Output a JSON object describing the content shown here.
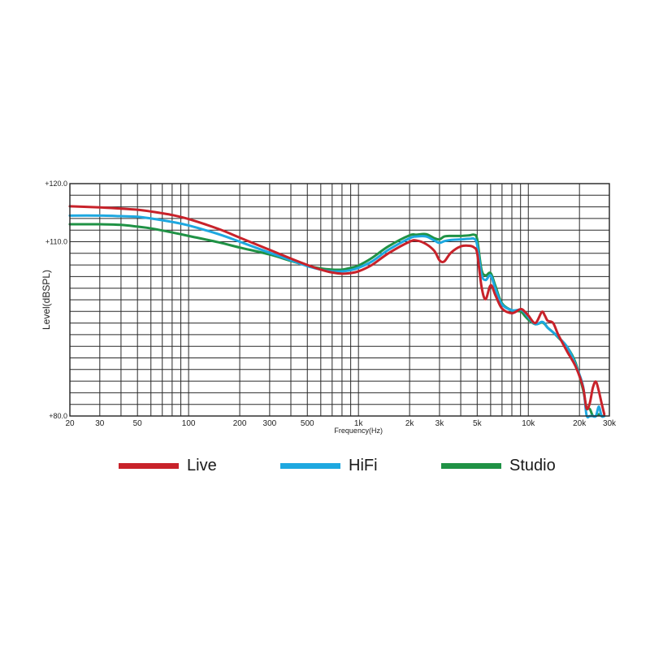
{
  "chart_data": {
    "type": "line",
    "xlabel": "Frequency(Hz)",
    "ylabel": "Level(dBSPL)",
    "x_scale": "log",
    "xlim": [
      20,
      30000
    ],
    "ylim": [
      80,
      120
    ],
    "grid": true,
    "x_ticks": [
      {
        "value": 20,
        "label": "20"
      },
      {
        "value": 30,
        "label": "30"
      },
      {
        "value": 50,
        "label": "50"
      },
      {
        "value": 100,
        "label": "100"
      },
      {
        "value": 200,
        "label": "200"
      },
      {
        "value": 300,
        "label": "300"
      },
      {
        "value": 500,
        "label": "500"
      },
      {
        "value": 1000,
        "label": "1k"
      },
      {
        "value": 2000,
        "label": "2k"
      },
      {
        "value": 3000,
        "label": "3k"
      },
      {
        "value": 5000,
        "label": "5k"
      },
      {
        "value": 10000,
        "label": "10k"
      },
      {
        "value": 20000,
        "label": "20k"
      },
      {
        "value": 30000,
        "label": "30k"
      }
    ],
    "y_ticks": [
      {
        "value": 120,
        "label": "+120.0"
      },
      {
        "value": 110,
        "label": "+110.0"
      },
      {
        "value": 80,
        "label": "+80.0"
      }
    ],
    "legend_position": "bottom",
    "series": [
      {
        "name": "Live",
        "color": "#c8222a",
        "x": [
          20,
          30,
          40,
          50,
          60,
          80,
          100,
          150,
          200,
          300,
          400,
          500,
          600,
          700,
          800,
          900,
          1000,
          1200,
          1500,
          2000,
          2200,
          2500,
          2800,
          3000,
          3200,
          3500,
          4000,
          4500,
          4800,
          5000,
          5300,
          5600,
          6000,
          6400,
          7000,
          8000,
          9000,
          9500,
          10000,
          11000,
          12000,
          12500,
          13000,
          14000,
          15000,
          17000,
          19000,
          21000,
          22000,
          23000,
          24000,
          25000,
          26000,
          27000,
          28000
        ],
        "y": [
          116.1,
          115.9,
          115.7,
          115.5,
          115.2,
          114.6,
          113.9,
          112.2,
          110.7,
          108.6,
          107.1,
          106.0,
          105.2,
          104.7,
          104.5,
          104.6,
          104.9,
          106.0,
          108.0,
          110.0,
          110.2,
          109.6,
          108.4,
          106.8,
          106.6,
          108.1,
          109.2,
          109.3,
          109.0,
          108.0,
          102.3,
          100.1,
          102.5,
          100.8,
          98.5,
          97.7,
          98.4,
          98.0,
          97.3,
          96.0,
          97.9,
          97.3,
          96.4,
          96.0,
          94.0,
          91.0,
          88.5,
          84.9,
          81.3,
          82.2,
          84.9,
          85.9,
          84.3,
          82.2,
          80.3
        ]
      },
      {
        "name": "HiFi",
        "color": "#1ea8e0",
        "x": [
          20,
          30,
          40,
          50,
          60,
          80,
          100,
          150,
          200,
          300,
          400,
          500,
          600,
          700,
          800,
          900,
          1000,
          1200,
          1500,
          2000,
          2200,
          2500,
          2800,
          3000,
          3200,
          3500,
          4000,
          4500,
          4800,
          5000,
          5300,
          5600,
          6000,
          6400,
          7000,
          8000,
          9000,
          9500,
          10000,
          11000,
          12000,
          12500,
          13000,
          14000,
          15000,
          17000,
          19000,
          21000,
          22000,
          23000,
          24000,
          25000,
          26000,
          27000,
          28000
        ],
        "y": [
          114.5,
          114.5,
          114.4,
          114.3,
          114.0,
          113.4,
          112.8,
          111.3,
          110.0,
          108.1,
          106.8,
          105.8,
          105.2,
          104.9,
          104.9,
          105.1,
          105.5,
          106.6,
          108.6,
          110.6,
          110.9,
          110.9,
          110.2,
          109.8,
          110.1,
          110.3,
          110.4,
          110.5,
          110.5,
          109.4,
          104.4,
          103.4,
          104.2,
          101.9,
          99.2,
          98.2,
          98.3,
          97.8,
          97.0,
          95.8,
          96.2,
          95.9,
          95.2,
          94.4,
          93.6,
          91.8,
          88.8,
          85.1,
          80.2,
          80.0,
          80.0,
          80.0,
          81.6,
          80.0,
          80.0
        ]
      },
      {
        "name": "Studio",
        "color": "#1f9245",
        "x": [
          20,
          30,
          40,
          50,
          60,
          80,
          100,
          150,
          200,
          300,
          400,
          500,
          600,
          700,
          800,
          900,
          1000,
          1200,
          1500,
          2000,
          2200,
          2500,
          2800,
          3000,
          3200,
          3500,
          4000,
          4500,
          4800,
          5000,
          5300,
          5600,
          6000,
          6400,
          7000,
          8000,
          9000,
          9500,
          10000,
          11000,
          12000,
          12500,
          13000,
          14000,
          15000,
          17000,
          19000,
          21000,
          22000,
          23000,
          24000,
          25000,
          26000,
          27000,
          28000
        ],
        "y": [
          113.0,
          113.0,
          112.9,
          112.6,
          112.3,
          111.6,
          111.0,
          109.9,
          109.0,
          107.8,
          106.7,
          105.9,
          105.4,
          105.2,
          105.2,
          105.5,
          105.9,
          107.2,
          109.2,
          111.1,
          111.2,
          111.3,
          110.6,
          110.4,
          110.9,
          111.0,
          111.0,
          111.1,
          111.2,
          110.4,
          105.2,
          104.2,
          104.6,
          102.4,
          99.4,
          98.2,
          98.0,
          97.3,
          96.6,
          95.8,
          96.1,
          95.8,
          95.2,
          94.4,
          93.5,
          91.8,
          89.1,
          84.5,
          81.5,
          81.2,
          80.0,
          80.0,
          80.3,
          80.0,
          80.0
        ]
      }
    ]
  }
}
